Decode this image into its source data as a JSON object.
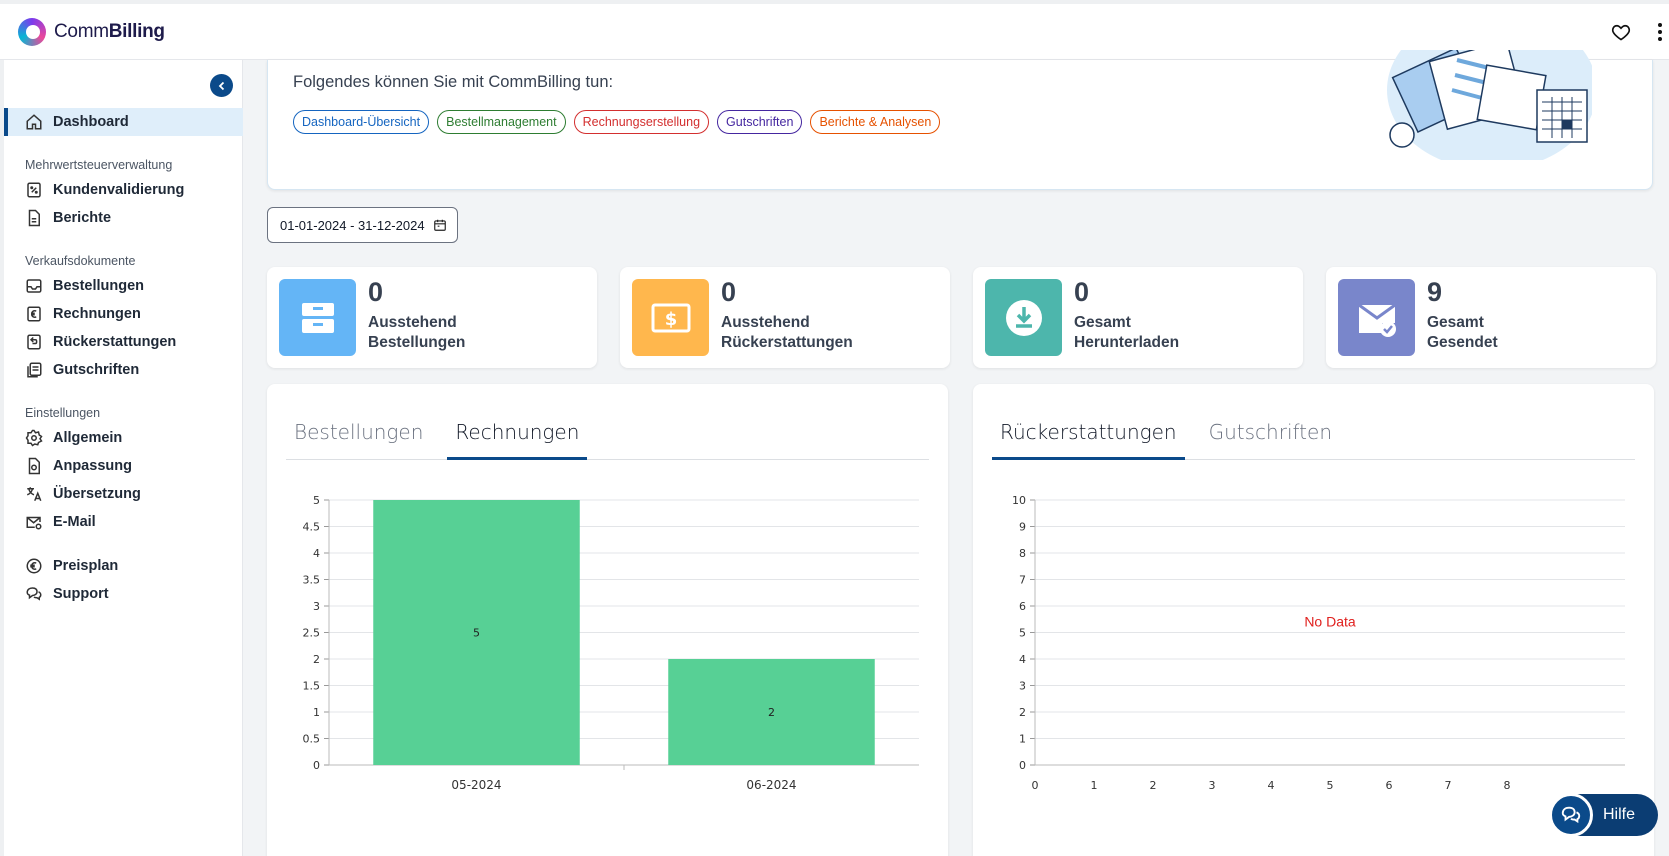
{
  "header": {
    "brand_prefix": "Comm",
    "brand_suffix": "Billing"
  },
  "sidebar": {
    "items": {
      "dashboard": "Dashboard",
      "kundenvalidierung": "Kundenvalidierung",
      "berichte": "Berichte",
      "bestellungen": "Bestellungen",
      "rechnungen": "Rechnungen",
      "rueckerstattungen": "Rückerstattungen",
      "gutschriften": "Gutschriften",
      "allgemein": "Allgemein",
      "anpassung": "Anpassung",
      "uebersetzung": "Übersetzung",
      "email": "E-Mail",
      "preisplan": "Preisplan",
      "support": "Support"
    },
    "sections": {
      "mwst": "Mehrwertsteuerverwaltung",
      "verkauf": "Verkaufsdokumente",
      "einstellungen": "Einstellungen"
    }
  },
  "welcome": {
    "text": "Folgendes können Sie mit CommBilling tun:",
    "pills": [
      "Dashboard-Übersicht",
      "Bestellmanagement",
      "Rechnungserstellung",
      "Gutschriften",
      "Berichte & Analysen"
    ],
    "pill_colors": [
      "#1565c0",
      "#2e7d32",
      "#d32f2f",
      "#4527a0",
      "#e65100"
    ]
  },
  "date_range": "01-01-2024 - 31-12-2024",
  "stats": [
    {
      "value": "0",
      "line1": "Ausstehend",
      "line2": "Bestellungen",
      "color": "#64b5f6"
    },
    {
      "value": "0",
      "line1": "Ausstehend",
      "line2": "Rückerstattungen",
      "color": "#ffb74d"
    },
    {
      "value": "0",
      "line1": "Gesamt",
      "line2": "Herunterladen",
      "color": "#4db6ac"
    },
    {
      "value": "9",
      "line1": "Gesamt",
      "line2": "Gesendet",
      "color": "#7986cb"
    }
  ],
  "left_panel": {
    "tabs": [
      "Bestellungen",
      "Rechnungen"
    ],
    "active_tab": 1
  },
  "right_panel": {
    "tabs": [
      "Rückerstattungen",
      "Gutschriften"
    ],
    "active_tab": 0,
    "empty_text": "No Data"
  },
  "help_label": "Hilfe",
  "chart_data": [
    {
      "type": "bar",
      "categories": [
        "05-2024",
        "06-2024"
      ],
      "values": [
        5,
        2
      ],
      "ylim": [
        0,
        5
      ],
      "yticks": [
        "0",
        "0.5",
        "1",
        "1.5",
        "2",
        "2.5",
        "3",
        "3.5",
        "4",
        "4.5",
        "5"
      ],
      "bar_color": "#57d095",
      "grid": true
    },
    {
      "type": "bar",
      "categories": [],
      "values": [],
      "ylim": [
        0,
        10
      ],
      "yticks": [
        "0",
        "1",
        "2",
        "3",
        "4",
        "5",
        "6",
        "7",
        "8",
        "9",
        "10"
      ],
      "xticks": [
        "0",
        "1",
        "2",
        "3",
        "4",
        "5",
        "6",
        "7",
        "8"
      ],
      "grid": true
    }
  ]
}
